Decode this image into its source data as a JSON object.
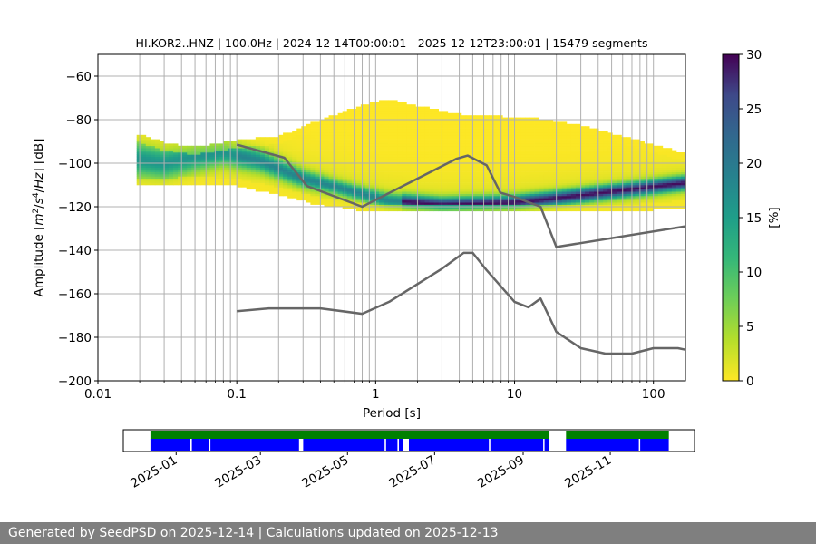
{
  "chart_data": [
    {
      "type": "heatmap",
      "title": "HI.KOR2..HNZ | 100.0Hz | 2024-12-14T00:00:01 - 2025-12-12T23:00:01 | 15479 segments",
      "xlabel": "Period [s]",
      "ylabel_parts": [
        "Amplitude [",
        "m",
        "2",
        "/",
        "s",
        "4",
        "/",
        "Hz",
        "] [dB]"
      ],
      "x_scale": "log",
      "xlim": [
        0.01,
        170
      ],
      "ylim": [
        -200,
        -50
      ],
      "x_ticks": [
        {
          "value": 0.01,
          "label": "0.01"
        },
        {
          "value": 0.1,
          "label": "0.1"
        },
        {
          "value": 1,
          "label": "1"
        },
        {
          "value": 10,
          "label": "10"
        },
        {
          "value": 100,
          "label": "100"
        }
      ],
      "y_ticks": [
        {
          "value": -60,
          "label": "−60"
        },
        {
          "value": -80,
          "label": "−80"
        },
        {
          "value": -100,
          "label": "−100"
        },
        {
          "value": -120,
          "label": "−120"
        },
        {
          "value": -140,
          "label": "−140"
        },
        {
          "value": -160,
          "label": "−160"
        },
        {
          "value": -180,
          "label": "−180"
        },
        {
          "value": -200,
          "label": "−200"
        }
      ],
      "grid": true,
      "colormap": "viridis (reversed)",
      "colorbar": {
        "label": "[%]",
        "min": 0,
        "max": 30,
        "ticks": [
          {
            "value": 0,
            "label": "0"
          },
          {
            "value": 5,
            "label": "5"
          },
          {
            "value": 10,
            "label": "10"
          },
          {
            "value": 15,
            "label": "15"
          },
          {
            "value": 20,
            "label": "20"
          },
          {
            "value": 25,
            "label": "25"
          },
          {
            "value": 30,
            "label": "30"
          }
        ]
      },
      "density_envelope": [
        {
          "period": 0.019,
          "db_min": -110,
          "db_max": -87
        },
        {
          "period": 0.03,
          "db_min": -110,
          "db_max": -91
        },
        {
          "period": 0.05,
          "db_min": -109,
          "db_max": -93
        },
        {
          "period": 0.1,
          "db_min": -110,
          "db_max": -90
        },
        {
          "period": 0.2,
          "db_min": -114,
          "db_max": -88
        },
        {
          "period": 0.35,
          "db_min": -118,
          "db_max": -82
        },
        {
          "period": 0.7,
          "db_min": -121,
          "db_max": -75
        },
        {
          "period": 1.2,
          "db_min": -122,
          "db_max": -71
        },
        {
          "period": 2,
          "db_min": -122,
          "db_max": -74
        },
        {
          "period": 4,
          "db_min": -122,
          "db_max": -78
        },
        {
          "period": 8,
          "db_min": -122,
          "db_max": -79
        },
        {
          "period": 15,
          "db_min": -122,
          "db_max": -80
        },
        {
          "period": 30,
          "db_min": -122,
          "db_max": -83
        },
        {
          "period": 60,
          "db_min": -122,
          "db_max": -88
        },
        {
          "period": 170,
          "db_min": -120,
          "db_max": -96
        }
      ],
      "mode_curve": [
        {
          "period": 0.019,
          "db": -98
        },
        {
          "period": 0.03,
          "db": -100
        },
        {
          "period": 0.05,
          "db": -97
        },
        {
          "period": 0.08,
          "db": -95
        },
        {
          "period": 0.15,
          "db": -99
        },
        {
          "period": 0.3,
          "db": -107
        },
        {
          "period": 0.7,
          "db": -113
        },
        {
          "period": 1.2,
          "db": -117
        },
        {
          "period": 3,
          "db": -119
        },
        {
          "period": 10,
          "db": -118
        },
        {
          "period": 20,
          "db": -116
        },
        {
          "period": 50,
          "db": -113
        },
        {
          "period": 170,
          "db": -109
        }
      ],
      "series": [
        {
          "x": [
            0.1,
            0.22,
            0.32,
            0.8,
            3.8,
            4.6,
            6.3,
            7.9,
            10,
            15.4,
            20,
            170
          ],
          "y": [
            -91.5,
            -97.5,
            -110.5,
            -120,
            -98,
            -96.5,
            -101,
            -113.5,
            -115.5,
            -120,
            -138.5,
            -129
          ]
        },
        {
          "x": [
            0.1,
            0.17,
            0.4,
            0.8,
            1.25,
            3,
            4.3,
            5,
            6.3,
            10,
            12.6,
            15.4,
            20,
            30,
            45,
            70,
            100,
            150,
            170
          ],
          "y": [
            -168,
            -166.7,
            -166.7,
            -169.2,
            -163.7,
            -148.5,
            -141.2,
            -141.2,
            -149.2,
            -163.7,
            -166.2,
            -162.2,
            -177.5,
            -185,
            -187.5,
            -187.5,
            -185,
            -185,
            -185.7
          ]
        }
      ]
    },
    {
      "type": "timeline",
      "range": [
        "2024-12-14",
        "2025-12-12"
      ],
      "x_ticks": [
        "2025-01",
        "2025-03",
        "2025-05",
        "2025-07",
        "2025-09",
        "2025-11"
      ],
      "colors": {
        "data": "#0000ff",
        "coverage": "#008000"
      },
      "gaps": [
        [
          "2025-01-11",
          "2025-01-12"
        ],
        [
          "2025-01-24",
          "2025-01-25"
        ],
        [
          "2025-03-28",
          "2025-03-31"
        ],
        [
          "2025-05-27",
          "2025-05-28"
        ],
        [
          "2025-06-05",
          "2025-06-06"
        ],
        [
          "2025-06-09",
          "2025-06-13"
        ],
        [
          "2025-08-08",
          "2025-08-09"
        ],
        [
          "2025-09-15",
          "2025-09-16"
        ],
        [
          "2025-09-19",
          "2025-10-01"
        ],
        [
          "2025-11-21",
          "2025-11-22"
        ]
      ]
    }
  ],
  "footer": "Generated by SeedPSD on 2025-12-14 | Calculations updated on 2025-12-13"
}
